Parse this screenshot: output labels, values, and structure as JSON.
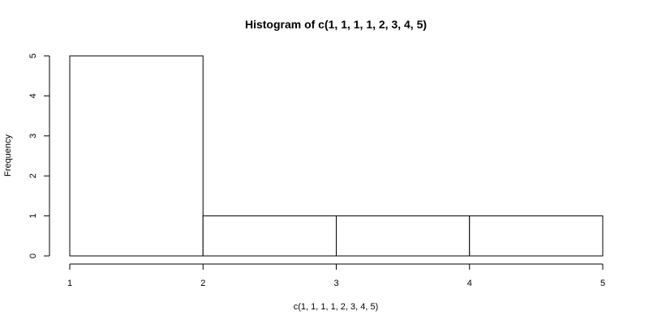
{
  "chart_data": {
    "type": "bar",
    "title": "Histogram of c(1, 1, 1, 1, 2, 3, 4, 5)",
    "xlabel": "c(1, 1, 1, 1, 2, 3, 4, 5)",
    "ylabel": "Frequency",
    "bins": [
      {
        "start": 1,
        "end": 2,
        "count": 5
      },
      {
        "start": 2,
        "end": 3,
        "count": 1
      },
      {
        "start": 3,
        "end": 4,
        "count": 1
      },
      {
        "start": 4,
        "end": 5,
        "count": 1
      }
    ],
    "xlim": [
      1,
      5
    ],
    "ylim": [
      0,
      5
    ],
    "xticks": [
      "1",
      "2",
      "3",
      "4",
      "5"
    ],
    "yticks": [
      "0",
      "1",
      "2",
      "3",
      "4",
      "5"
    ],
    "grid": false,
    "colors": {
      "bar_fill": "#ffffff",
      "bar_stroke": "#000000",
      "axis": "#000000"
    }
  }
}
